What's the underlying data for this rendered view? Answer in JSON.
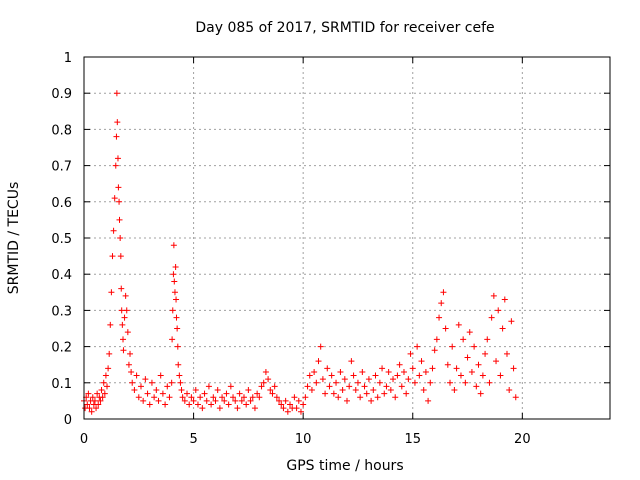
{
  "chart_data": {
    "type": "scatter",
    "title": "Day 085 of 2017, SRMTID for receiver cefe",
    "xlabel": "GPS time / hours",
    "ylabel": "SRMTID / TECUs",
    "xlim": [
      0,
      24
    ],
    "ylim": [
      0,
      1
    ],
    "x_ticks": [
      0,
      5,
      10,
      15,
      20
    ],
    "x_tick_labels": [
      "0",
      "5",
      "10",
      "15",
      "20"
    ],
    "y_ticks": [
      0,
      0.1,
      0.2,
      0.3,
      0.4,
      0.5,
      0.6,
      0.7,
      0.8,
      0.9,
      1
    ],
    "y_tick_labels": [
      "0",
      "0.1",
      "0.2",
      "0.3",
      "0.4",
      "0.5",
      "0.6",
      "0.7",
      "0.8",
      "0.9",
      "1"
    ],
    "grid": true,
    "marker": "+",
    "marker_color": "#ff0000",
    "series": [
      {
        "name": "SRMTID",
        "x": [
          0.0,
          0.05,
          0.1,
          0.15,
          0.2,
          0.25,
          0.3,
          0.35,
          0.4,
          0.45,
          0.5,
          0.55,
          0.6,
          0.65,
          0.7,
          0.75,
          0.8,
          0.85,
          0.9,
          0.95,
          1.0,
          1.05,
          1.1,
          1.15,
          1.2,
          1.25,
          1.3,
          1.35,
          1.4,
          1.45,
          1.48,
          1.5,
          1.52,
          1.55,
          1.57,
          1.6,
          1.62,
          1.65,
          1.68,
          1.7,
          1.72,
          1.75,
          1.78,
          1.8,
          1.85,
          1.9,
          1.95,
          2.0,
          2.05,
          2.1,
          2.15,
          2.2,
          2.3,
          2.4,
          2.5,
          2.6,
          2.7,
          2.8,
          2.9,
          3.0,
          3.1,
          3.2,
          3.3,
          3.4,
          3.5,
          3.6,
          3.7,
          3.8,
          3.9,
          4.0,
          4.02,
          4.05,
          4.08,
          4.1,
          4.12,
          4.15,
          4.18,
          4.2,
          4.22,
          4.25,
          4.28,
          4.3,
          4.35,
          4.4,
          4.45,
          4.5,
          4.6,
          4.7,
          4.8,
          4.9,
          5.0,
          5.1,
          5.2,
          5.3,
          5.4,
          5.5,
          5.6,
          5.7,
          5.8,
          5.9,
          6.0,
          6.1,
          6.2,
          6.3,
          6.4,
          6.5,
          6.6,
          6.7,
          6.8,
          6.9,
          7.0,
          7.1,
          7.2,
          7.3,
          7.4,
          7.5,
          7.6,
          7.7,
          7.8,
          7.9,
          8.0,
          8.1,
          8.2,
          8.3,
          8.4,
          8.5,
          8.6,
          8.7,
          8.8,
          8.9,
          9.0,
          9.1,
          9.2,
          9.3,
          9.4,
          9.5,
          9.6,
          9.7,
          9.8,
          9.9,
          10.0,
          10.1,
          10.2,
          10.3,
          10.4,
          10.5,
          10.6,
          10.7,
          10.8,
          10.9,
          11.0,
          11.1,
          11.2,
          11.3,
          11.4,
          11.5,
          11.6,
          11.7,
          11.8,
          11.9,
          12.0,
          12.1,
          12.2,
          12.3,
          12.4,
          12.5,
          12.6,
          12.7,
          12.8,
          12.9,
          13.0,
          13.1,
          13.2,
          13.3,
          13.4,
          13.5,
          13.6,
          13.7,
          13.8,
          13.9,
          14.0,
          14.1,
          14.2,
          14.3,
          14.4,
          14.5,
          14.6,
          14.7,
          14.8,
          14.9,
          15.0,
          15.1,
          15.2,
          15.3,
          15.4,
          15.5,
          15.6,
          15.7,
          15.8,
          15.9,
          16.0,
          16.1,
          16.2,
          16.3,
          16.4,
          16.5,
          16.6,
          16.7,
          16.8,
          16.9,
          17.0,
          17.1,
          17.2,
          17.3,
          17.4,
          17.5,
          17.6,
          17.7,
          17.8,
          17.9,
          18.0,
          18.1,
          18.2,
          18.3,
          18.4,
          18.5,
          18.6,
          18.7,
          18.8,
          18.9,
          19.0,
          19.1,
          19.2,
          19.3,
          19.4,
          19.5,
          19.6,
          19.7
        ],
        "y": [
          0.05,
          0.03,
          0.06,
          0.04,
          0.07,
          0.03,
          0.05,
          0.02,
          0.06,
          0.04,
          0.05,
          0.03,
          0.07,
          0.04,
          0.06,
          0.05,
          0.08,
          0.06,
          0.1,
          0.07,
          0.12,
          0.09,
          0.14,
          0.18,
          0.26,
          0.35,
          0.45,
          0.52,
          0.61,
          0.7,
          0.78,
          0.9,
          0.82,
          0.72,
          0.64,
          0.6,
          0.55,
          0.5,
          0.45,
          0.36,
          0.3,
          0.26,
          0.22,
          0.19,
          0.28,
          0.34,
          0.3,
          0.24,
          0.15,
          0.18,
          0.13,
          0.1,
          0.08,
          0.12,
          0.06,
          0.09,
          0.05,
          0.11,
          0.07,
          0.04,
          0.1,
          0.06,
          0.08,
          0.05,
          0.12,
          0.07,
          0.04,
          0.09,
          0.06,
          0.1,
          0.22,
          0.3,
          0.4,
          0.48,
          0.38,
          0.35,
          0.42,
          0.33,
          0.28,
          0.25,
          0.2,
          0.15,
          0.12,
          0.1,
          0.08,
          0.06,
          0.05,
          0.07,
          0.04,
          0.06,
          0.05,
          0.08,
          0.04,
          0.06,
          0.03,
          0.07,
          0.05,
          0.09,
          0.04,
          0.06,
          0.05,
          0.08,
          0.03,
          0.06,
          0.05,
          0.07,
          0.04,
          0.09,
          0.06,
          0.05,
          0.03,
          0.07,
          0.05,
          0.06,
          0.04,
          0.08,
          0.05,
          0.06,
          0.03,
          0.07,
          0.06,
          0.09,
          0.1,
          0.13,
          0.11,
          0.08,
          0.07,
          0.09,
          0.06,
          0.05,
          0.04,
          0.03,
          0.05,
          0.02,
          0.04,
          0.03,
          0.06,
          0.03,
          0.05,
          0.02,
          0.04,
          0.06,
          0.09,
          0.12,
          0.08,
          0.13,
          0.1,
          0.16,
          0.2,
          0.11,
          0.07,
          0.14,
          0.09,
          0.12,
          0.07,
          0.1,
          0.06,
          0.13,
          0.08,
          0.11,
          0.05,
          0.09,
          0.16,
          0.12,
          0.08,
          0.1,
          0.06,
          0.13,
          0.09,
          0.07,
          0.11,
          0.05,
          0.08,
          0.12,
          0.06,
          0.1,
          0.14,
          0.07,
          0.09,
          0.13,
          0.08,
          0.11,
          0.06,
          0.12,
          0.15,
          0.09,
          0.13,
          0.07,
          0.11,
          0.18,
          0.14,
          0.1,
          0.2,
          0.12,
          0.16,
          0.08,
          0.13,
          0.05,
          0.1,
          0.14,
          0.19,
          0.22,
          0.28,
          0.32,
          0.35,
          0.25,
          0.15,
          0.1,
          0.2,
          0.08,
          0.14,
          0.26,
          0.12,
          0.22,
          0.1,
          0.17,
          0.24,
          0.13,
          0.2,
          0.09,
          0.15,
          0.07,
          0.12,
          0.18,
          0.22,
          0.1,
          0.28,
          0.34,
          0.16,
          0.3,
          0.12,
          0.25,
          0.33,
          0.18,
          0.08,
          0.27,
          0.14,
          0.06
        ]
      }
    ]
  }
}
